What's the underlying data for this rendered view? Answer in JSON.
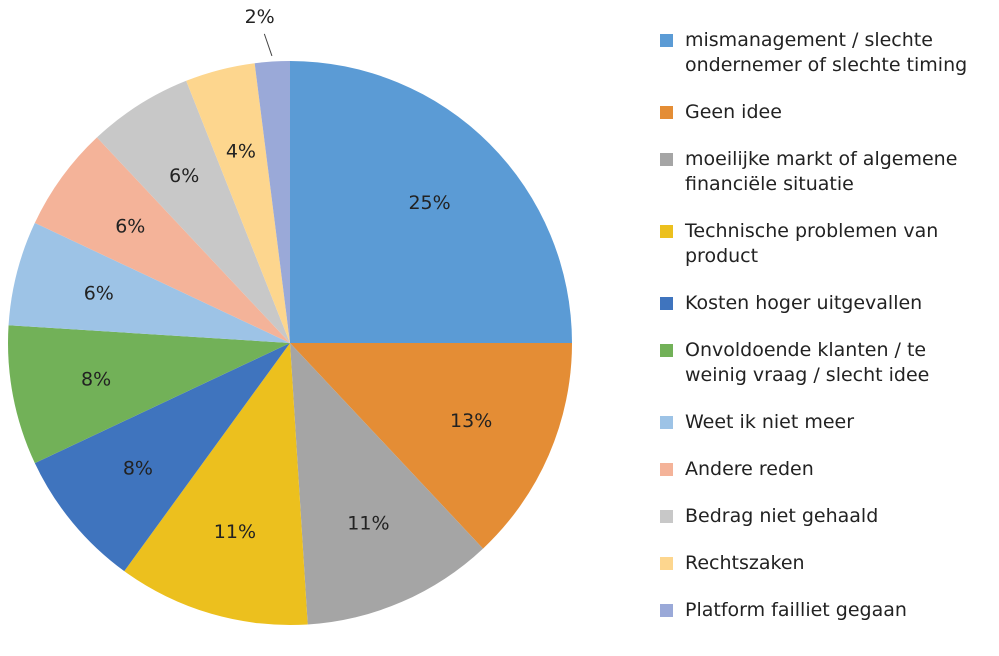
{
  "chart_data": {
    "type": "pie",
    "categories": [
      "mismanagement / slechte ondernemer of slechte timing",
      "Geen idee",
      "moeilijke markt of algemene financiële situatie",
      "Technische problemen van product",
      "Kosten hoger uitgevallen",
      "Onvoldoende klanten / te weinig vraag / slecht idee",
      "Weet ik niet meer",
      "Andere reden",
      "Bedrag niet gehaald",
      "Rechtszaken",
      "Platform failliet gegaan"
    ],
    "values": [
      25,
      13,
      11,
      11,
      8,
      8,
      6,
      6,
      6,
      4,
      2
    ],
    "value_labels": [
      "25%",
      "13%",
      "11%",
      "11%",
      "8%",
      "8%",
      "6%",
      "6%",
      "6%",
      "4%",
      "2%"
    ],
    "colors": [
      "#5b9bd5",
      "#e48d35",
      "#a5a5a5",
      "#ecc01e",
      "#3f74be",
      "#72b158",
      "#9dc3e6",
      "#f4b399",
      "#c8c8c8",
      "#fdd68e",
      "#9aa9d8"
    ],
    "legend": "right"
  }
}
